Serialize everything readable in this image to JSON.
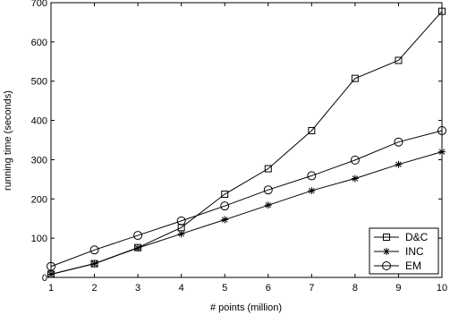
{
  "chart_data": {
    "type": "line",
    "title": "",
    "xlabel": "# points (million)",
    "ylabel": "running time (seconds)",
    "xlim": [
      1,
      10
    ],
    "ylim": [
      0,
      700
    ],
    "xticks": [
      "1",
      "2",
      "3",
      "4",
      "5",
      "6",
      "7",
      "8",
      "9",
      "10"
    ],
    "yticks": [
      "0",
      "100",
      "200",
      "300",
      "400",
      "500",
      "600",
      "700"
    ],
    "grid": false,
    "legend_position": "bottom-right",
    "x": [
      1,
      2,
      3,
      4,
      5,
      6,
      7,
      8,
      9,
      10
    ],
    "series": [
      {
        "name": "D&C",
        "marker": "square",
        "color": "#000000",
        "values": [
          8,
          35,
          76,
          127,
          212,
          277,
          374,
          507,
          553,
          678
        ]
      },
      {
        "name": "INC",
        "marker": "asterisk",
        "color": "#000000",
        "values": [
          8,
          35,
          75,
          111,
          147,
          184,
          221,
          252,
          288,
          320
        ]
      },
      {
        "name": "EM",
        "marker": "circle",
        "color": "#000000",
        "values": [
          28,
          70,
          107,
          144,
          182,
          223,
          259,
          299,
          345,
          374
        ]
      }
    ]
  }
}
